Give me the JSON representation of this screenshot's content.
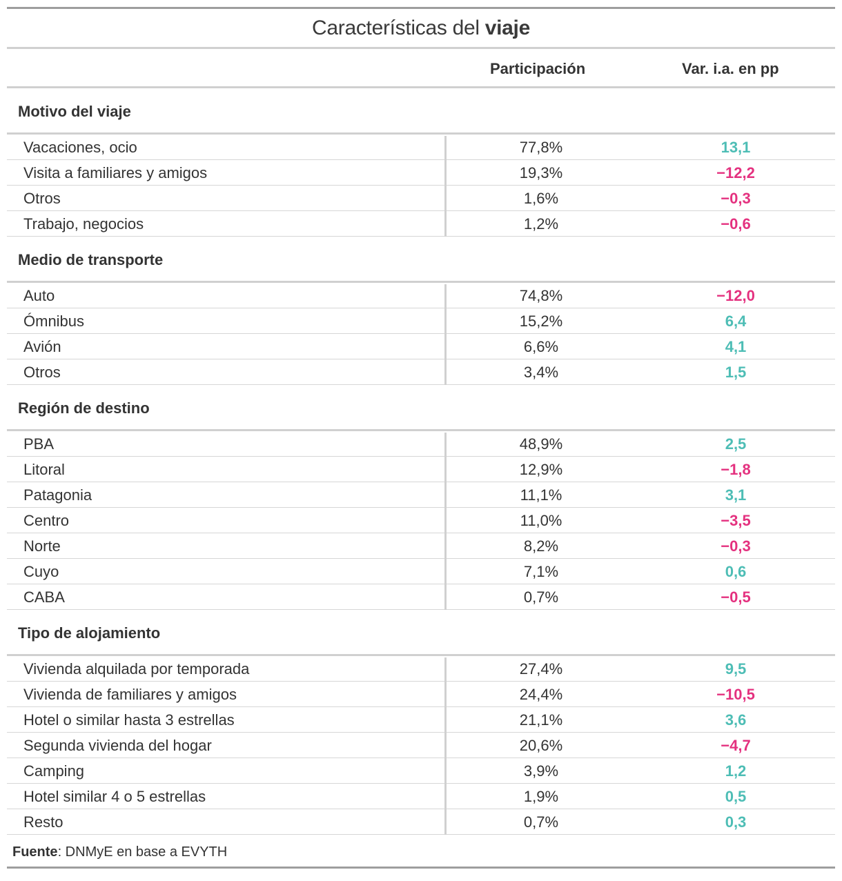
{
  "title": {
    "regular": "Características del",
    "bold": "viaje"
  },
  "columns": {
    "participation": "Participación",
    "variation": "Var. i.a. en pp"
  },
  "colors": {
    "positive": "#4dbdb5",
    "negative": "#e4317f"
  },
  "sections": [
    {
      "name": "Motivo del viaje",
      "rows": [
        {
          "label": "Vacaciones, ocio",
          "part": "77,8%",
          "var": "13,1",
          "sign": "pos"
        },
        {
          "label": "Visita a familiares y amigos",
          "part": "19,3%",
          "var": "−12,2",
          "sign": "neg"
        },
        {
          "label": "Otros",
          "part": "1,6%",
          "var": "−0,3",
          "sign": "neg"
        },
        {
          "label": "Trabajo, negocios",
          "part": "1,2%",
          "var": "−0,6",
          "sign": "neg"
        }
      ]
    },
    {
      "name": "Medio de transporte",
      "rows": [
        {
          "label": "Auto",
          "part": "74,8%",
          "var": "−12,0",
          "sign": "neg"
        },
        {
          "label": "Ómnibus",
          "part": "15,2%",
          "var": "6,4",
          "sign": "pos"
        },
        {
          "label": "Avión",
          "part": "6,6%",
          "var": "4,1",
          "sign": "pos"
        },
        {
          "label": "Otros",
          "part": "3,4%",
          "var": "1,5",
          "sign": "pos"
        }
      ]
    },
    {
      "name": "Región de destino",
      "rows": [
        {
          "label": "PBA",
          "part": "48,9%",
          "var": "2,5",
          "sign": "pos"
        },
        {
          "label": "Litoral",
          "part": "12,9%",
          "var": "−1,8",
          "sign": "neg"
        },
        {
          "label": "Patagonia",
          "part": "11,1%",
          "var": "3,1",
          "sign": "pos"
        },
        {
          "label": "Centro",
          "part": "11,0%",
          "var": "−3,5",
          "sign": "neg"
        },
        {
          "label": "Norte",
          "part": "8,2%",
          "var": "−0,3",
          "sign": "neg"
        },
        {
          "label": "Cuyo",
          "part": "7,1%",
          "var": "0,6",
          "sign": "pos"
        },
        {
          "label": "CABA",
          "part": "0,7%",
          "var": "−0,5",
          "sign": "neg"
        }
      ]
    },
    {
      "name": "Tipo de alojamiento",
      "rows": [
        {
          "label": "Vivienda alquilada por temporada",
          "part": "27,4%",
          "var": "9,5",
          "sign": "pos"
        },
        {
          "label": "Vivienda de familiares y amigos",
          "part": "24,4%",
          "var": "−10,5",
          "sign": "neg"
        },
        {
          "label": "Hotel o similar hasta 3 estrellas",
          "part": "21,1%",
          "var": "3,6",
          "sign": "pos"
        },
        {
          "label": "Segunda vivienda del hogar",
          "part": "20,6%",
          "var": "−4,7",
          "sign": "neg"
        },
        {
          "label": "Camping",
          "part": "3,9%",
          "var": "1,2",
          "sign": "pos"
        },
        {
          "label": "Hotel similar 4 o 5 estrellas",
          "part": "1,9%",
          "var": "0,5",
          "sign": "pos"
        },
        {
          "label": "Resto",
          "part": "0,7%",
          "var": "0,3",
          "sign": "pos"
        }
      ]
    }
  ],
  "source": {
    "label": "Fuente",
    "text": ": DNMyE en base a EVYTH"
  }
}
